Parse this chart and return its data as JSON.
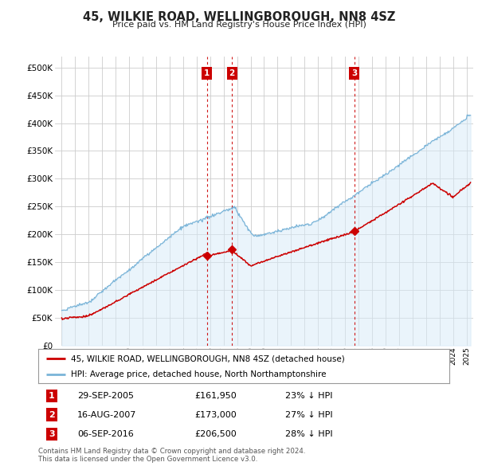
{
  "title": "45, WILKIE ROAD, WELLINGBOROUGH, NN8 4SZ",
  "subtitle": "Price paid vs. HM Land Registry's House Price Index (HPI)",
  "legend_line1": "45, WILKIE ROAD, WELLINGBOROUGH, NN8 4SZ (detached house)",
  "legend_line2": "HPI: Average price, detached house, North Northamptonshire",
  "footnote1": "Contains HM Land Registry data © Crown copyright and database right 2024.",
  "footnote2": "This data is licensed under the Open Government Licence v3.0.",
  "transactions": [
    {
      "label": "1",
      "date": "29-SEP-2005",
      "price": "£161,950",
      "pct": "23% ↓ HPI",
      "x_year": 2005.75
    },
    {
      "label": "2",
      "date": "16-AUG-2007",
      "price": "£173,000",
      "pct": "27% ↓ HPI",
      "x_year": 2007.62
    },
    {
      "label": "3",
      "date": "06-SEP-2016",
      "price": "£206,500",
      "pct": "28% ↓ HPI",
      "x_year": 2016.69
    }
  ],
  "sale_years": [
    2005.75,
    2007.62,
    2016.69
  ],
  "sale_prices": [
    161950,
    173000,
    206500
  ],
  "ylim": [
    0,
    520000
  ],
  "xlim_start": 1994.5,
  "xlim_end": 2025.5,
  "hpi_color": "#7ab4d8",
  "hpi_fill_color": "#d6eaf8",
  "price_color": "#cc0000",
  "vline_color": "#cc0000",
  "grid_color": "#cccccc",
  "bg_color": "#ffffff",
  "title_color": "#222222",
  "label_box_color": "#cc0000"
}
